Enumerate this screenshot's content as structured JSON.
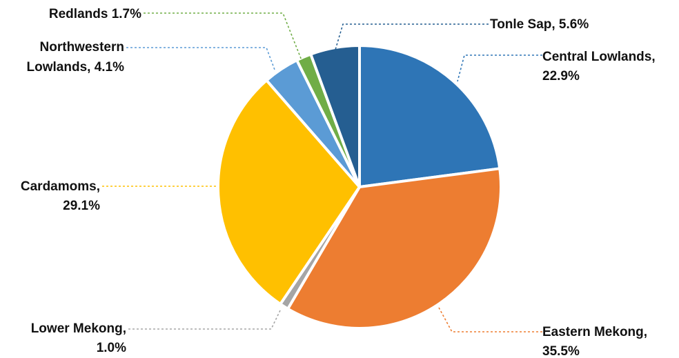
{
  "chart_data": {
    "type": "pie",
    "title": "",
    "start_angle_deg": 0,
    "direction": "clockwise",
    "slices": [
      {
        "label": "Central Lowlands",
        "value": 22.9,
        "display_value": "22.9%",
        "color": "#2E75B6"
      },
      {
        "label": "Eastern Mekong",
        "value": 35.5,
        "display_value": "35.5%",
        "color": "#ED7D31"
      },
      {
        "label": "Lower Mekong",
        "value": 1.0,
        "display_value": "1.0%",
        "color": "#A5A5A5"
      },
      {
        "label": "Cardamoms",
        "value": 29.1,
        "display_value": "29.1%",
        "color": "#FFC000"
      },
      {
        "label": "Northwestern Lowlands",
        "value": 4.1,
        "display_value": "4.1%",
        "color": "#5B9BD5"
      },
      {
        "label": "Redlands",
        "value": 1.7,
        "display_value": "1.7%",
        "color": "#70AD47"
      },
      {
        "label": "Tonle Sap",
        "value": 5.6,
        "display_value": "5.6%",
        "color": "#255E91"
      }
    ],
    "data_labels": [
      {
        "line1": "Central Lowlands,",
        "line2": "22.9%"
      },
      {
        "line1": "Eastern Mekong,",
        "line2": "35.5%"
      },
      {
        "line1": "Lower Mekong,",
        "line2": "1.0%"
      },
      {
        "line1": "Cardamoms,",
        "line2": "29.1%"
      },
      {
        "line1": "Northwestern",
        "line2": "Lowlands, 4.1%"
      },
      {
        "line1": "Redlands 1.7%",
        "line2": ""
      },
      {
        "line1": "Tonle Sap, 5.6%",
        "line2": ""
      }
    ],
    "legend": "none"
  }
}
